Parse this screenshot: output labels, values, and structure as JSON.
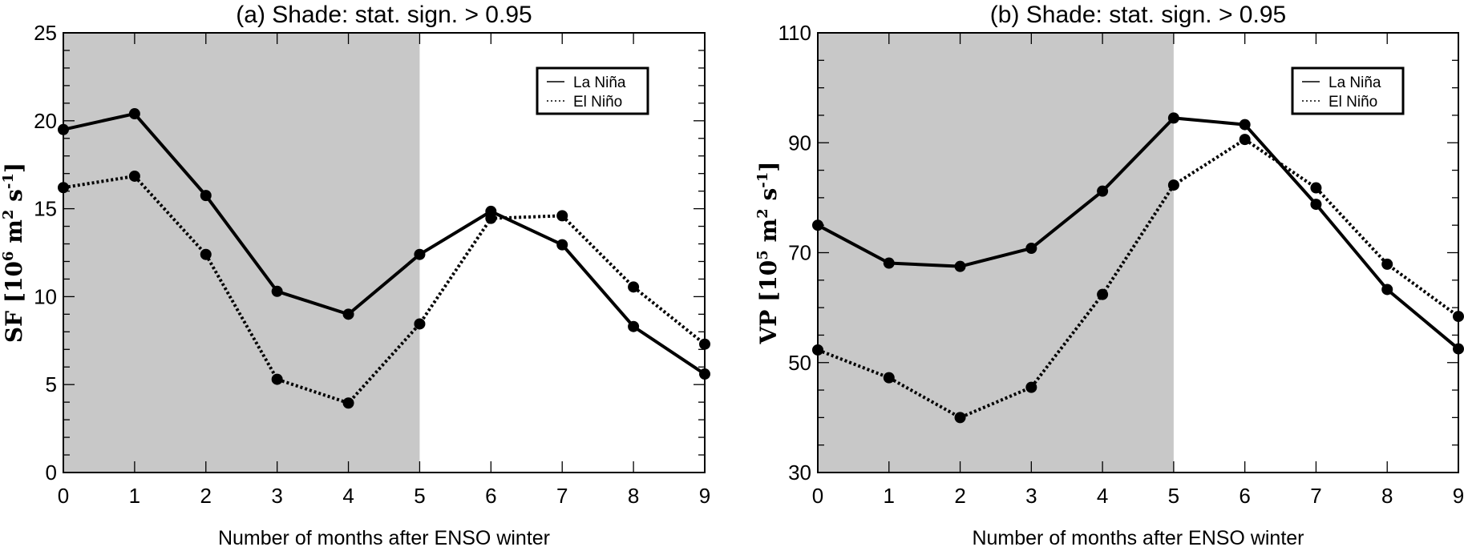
{
  "chart_data": [
    {
      "type": "line",
      "title": "(a) Shade: stat. sign. > 0.95",
      "xlabel": "Number of months after ENSO winter",
      "ylabel_main": "SF",
      "ylabel_units": "[10^6 m^2 s^-1]",
      "xlim": [
        0,
        9
      ],
      "ylim": [
        0,
        25
      ],
      "xticks": [
        0,
        1,
        2,
        3,
        4,
        5,
        6,
        7,
        8,
        9
      ],
      "yticks": [
        0,
        5,
        10,
        15,
        20,
        25
      ],
      "yminor_step": 1,
      "shade_range": [
        0,
        5
      ],
      "shade_color": "#c8c8c8",
      "legend_position": "top-right",
      "x": [
        0,
        1,
        2,
        3,
        4,
        5,
        6,
        7,
        8,
        9
      ],
      "series": [
        {
          "name": "La Niña",
          "style": "solid",
          "values": [
            19.5,
            20.4,
            15.75,
            10.3,
            9.0,
            12.4,
            14.85,
            12.95,
            8.3,
            5.6
          ]
        },
        {
          "name": "El Niño",
          "style": "dotted",
          "values": [
            16.2,
            16.85,
            12.4,
            5.3,
            3.95,
            8.45,
            14.45,
            14.6,
            10.55,
            7.3
          ]
        }
      ]
    },
    {
      "type": "line",
      "title": "(b) Shade: stat. sign. > 0.95",
      "xlabel": "Number of months after ENSO winter",
      "ylabel_main": "VP",
      "ylabel_units": "[10^5 m^2 s^-1]",
      "xlim": [
        0,
        9
      ],
      "ylim": [
        30,
        110
      ],
      "xticks": [
        0,
        1,
        2,
        3,
        4,
        5,
        6,
        7,
        8,
        9
      ],
      "yticks": [
        30,
        50,
        70,
        90,
        110
      ],
      "yminor_step": 5,
      "shade_range": [
        0,
        5
      ],
      "shade_color": "#c8c8c8",
      "legend_position": "top-right",
      "x": [
        0,
        1,
        2,
        3,
        4,
        5,
        6,
        7,
        8,
        9
      ],
      "series": [
        {
          "name": "La Niña",
          "style": "solid",
          "values": [
            75.0,
            68.1,
            67.5,
            70.8,
            81.2,
            94.5,
            93.3,
            78.8,
            63.3,
            52.5
          ]
        },
        {
          "name": "El Niño",
          "style": "dotted",
          "values": [
            52.3,
            47.25,
            40.0,
            45.5,
            62.4,
            82.3,
            90.6,
            81.8,
            67.9,
            58.4
          ]
        }
      ]
    }
  ]
}
